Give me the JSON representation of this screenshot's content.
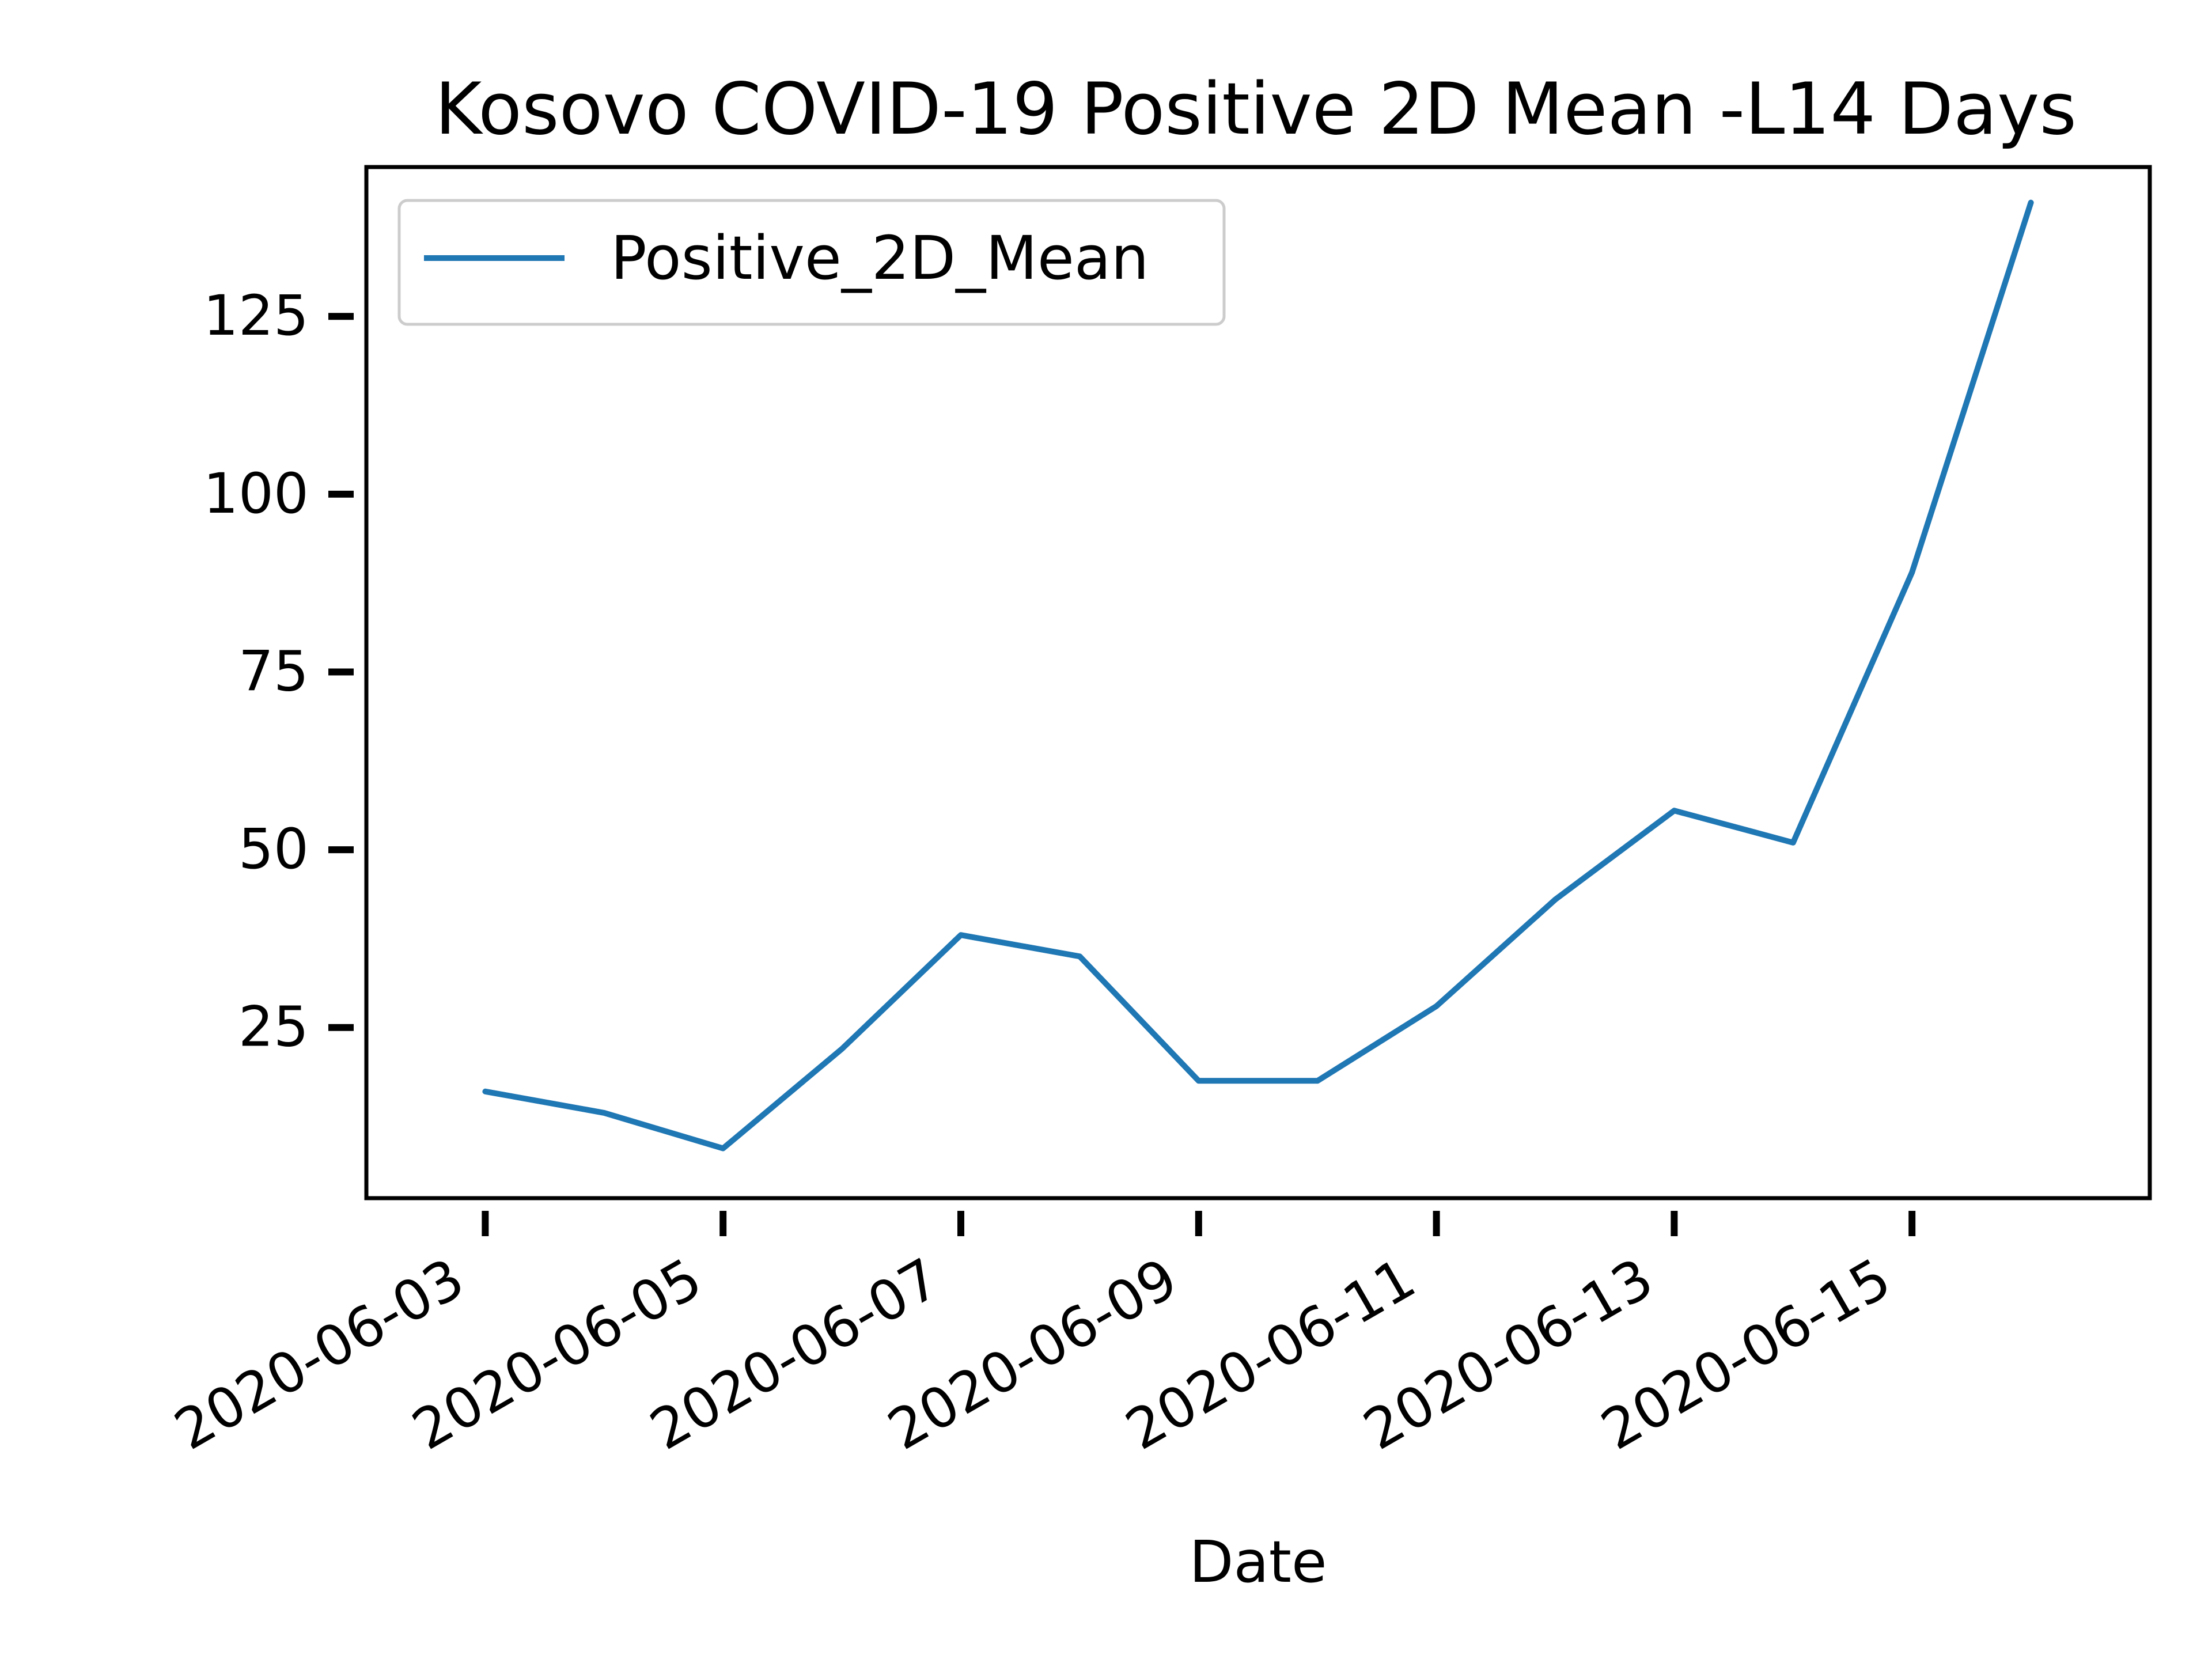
{
  "chart_data": {
    "type": "line",
    "title": "Kosovo COVID-19 Positive 2D Mean -L14 Days",
    "xlabel": "Date",
    "ylabel": "",
    "x_tick_labels": [
      "2020-06-03",
      "2020-06-05",
      "2020-06-07",
      "2020-06-09",
      "2020-06-11",
      "2020-06-13",
      "2020-06-15"
    ],
    "y_ticks": [
      25,
      50,
      75,
      100,
      125
    ],
    "xlim": [
      "2020-06-02",
      "2020-06-17"
    ],
    "ylim": [
      1,
      146
    ],
    "grid": false,
    "legend": "top-left",
    "series": [
      {
        "name": "Positive_2D_Mean",
        "color": "#1f77b4",
        "x": [
          "2020-06-03",
          "2020-06-04",
          "2020-06-05",
          "2020-06-06",
          "2020-06-07",
          "2020-06-08",
          "2020-06-09",
          "2020-06-10",
          "2020-06-11",
          "2020-06-12",
          "2020-06-13",
          "2020-06-14",
          "2020-06-15",
          "2020-06-16"
        ],
        "values": [
          16,
          13,
          8,
          22,
          38,
          35,
          17.5,
          17.5,
          28,
          43,
          55.5,
          51,
          89,
          141
        ]
      }
    ]
  }
}
